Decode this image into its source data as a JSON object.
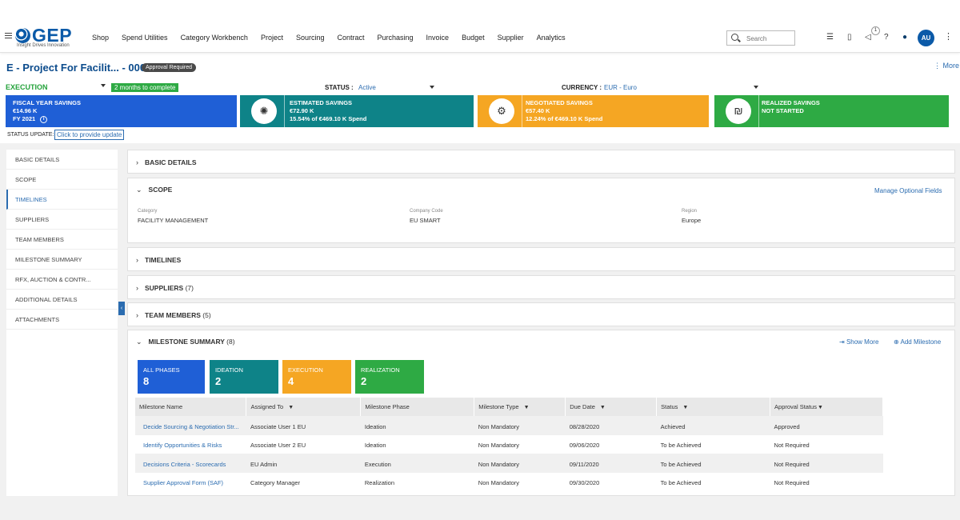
{
  "brand": {
    "name": "GEP",
    "tagline": "Insight Drives Innovation"
  },
  "nav": [
    "Shop",
    "Spend Utilities",
    "Category Workbench",
    "Project",
    "Sourcing",
    "Contract",
    "Purchasing",
    "Invoice",
    "Budget",
    "Supplier",
    "Analytics"
  ],
  "search": {
    "placeholder": "Search"
  },
  "header_icons": {
    "notification_count": "1",
    "user_initials": "AU"
  },
  "project": {
    "title": "E - Project For Facilit... - 000206",
    "approval_badge": "Approval Required",
    "more": "More"
  },
  "phase": {
    "label": "EXECUTION",
    "duration": "2 months to complete"
  },
  "status": {
    "label": "STATUS :",
    "value": "Active"
  },
  "currency": {
    "label": "CURRENCY :",
    "value": "EUR - Euro"
  },
  "tiles": {
    "fiscal": {
      "title": "FISCAL YEAR SAVINGS",
      "amount": "€14.96 K",
      "year": "FY 2021",
      "color": "#1f5fd6"
    },
    "estimated": {
      "title": "ESTIMATED SAVINGS",
      "amount": "€72.90 K",
      "detail": "15.54% of €469.10 K Spend",
      "color": "#0e8388"
    },
    "negotiated": {
      "title": "NEGOTIATED SAVINGS",
      "amount": "€57.40 K",
      "detail": "12.24% of €469.10 K Spend",
      "color": "#f5a623"
    },
    "realized": {
      "title": "REALIZED SAVINGS",
      "status": "NOT STARTED",
      "color": "#2eaa44"
    }
  },
  "status_update": {
    "label": "STATUS UPDATE:",
    "link": "Click to provide update"
  },
  "sidebar": {
    "items": [
      "BASIC DETAILS",
      "SCOPE",
      "TIMELINES",
      "SUPPLIERS",
      "TEAM MEMBERS",
      "MILESTONE SUMMARY",
      "RFX, AUCTION & CONTR...",
      "ADDITIONAL DETAILS",
      "ATTACHMENTS"
    ],
    "active": "TIMELINES"
  },
  "sections": {
    "basic": {
      "title": "BASIC DETAILS"
    },
    "scope": {
      "title": "SCOPE",
      "manage": "Manage Optional Fields",
      "fields": [
        {
          "label": "Category",
          "value": "FACILITY MANAGEMENT"
        },
        {
          "label": "Company Code",
          "value": "EU SMART"
        },
        {
          "label": "Region",
          "value": "Europe"
        }
      ]
    },
    "timelines": {
      "title": "TIMELINES"
    },
    "suppliers": {
      "title": "SUPPLIERS",
      "count": "(7)"
    },
    "team": {
      "title": "TEAM MEMBERS",
      "count": "(5)"
    },
    "milestones": {
      "title": "MILESTONE SUMMARY",
      "count": "(8)",
      "show_more": "Show More",
      "add": "Add Milestone"
    }
  },
  "phase_tiles": [
    {
      "label": "ALL PHASES",
      "count": "8",
      "color": "#1f5fd6"
    },
    {
      "label": "IDEATION",
      "count": "2",
      "color": "#0e8388"
    },
    {
      "label": "EXECUTION",
      "count": "4",
      "color": "#f5a623"
    },
    {
      "label": "REALIZATION",
      "count": "2",
      "color": "#2eaa44"
    }
  ],
  "table": {
    "headers": [
      "Milestone Name",
      "Assigned To",
      "Milestone Phase",
      "Milestone Type",
      "Due Date",
      "Status",
      "Approval Status"
    ],
    "rows": [
      [
        "Decide Sourcing & Negotiation Str...",
        "Associate User 1 EU",
        "Ideation",
        "Non Mandatory",
        "08/28/2020",
        "Achieved",
        "Approved"
      ],
      [
        "Identify Opportunities & Risks",
        "Associate User 2 EU",
        "Ideation",
        "Non Mandatory",
        "09/06/2020",
        "To be Achieved",
        "Not Required"
      ],
      [
        "Decisions Criteria - Scorecards",
        "EU Admin",
        "Execution",
        "Non Mandatory",
        "09/11/2020",
        "To be Achieved",
        "Not Required"
      ],
      [
        "Supplier Approval Form (SAF)",
        "Category Manager",
        "Realization",
        "Non Mandatory",
        "09/30/2020",
        "To be Achieved",
        "Not Required"
      ]
    ]
  }
}
